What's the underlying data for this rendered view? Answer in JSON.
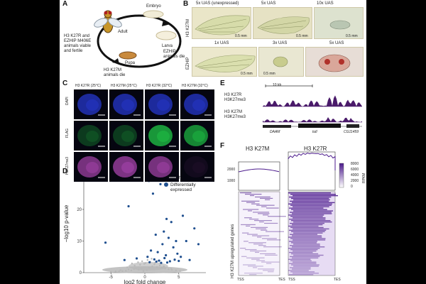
{
  "panels": {
    "A": {
      "label": "A",
      "stages": [
        "Embryo",
        "Adult",
        "Larva",
        "Pupa"
      ],
      "left_note": [
        "H3 K27R and",
        "EZHIP M406E",
        "animals viable",
        "and fertile"
      ],
      "right_note": [
        "EZHIP",
        "animals die"
      ],
      "bottom_note": [
        "H3 K27M",
        "animals die"
      ]
    },
    "B": {
      "label": "B",
      "row1_title": "H3 K27M",
      "row2_title": "EZHIP",
      "row1_cols": [
        "5x UAS (unexpressed)",
        "5x UAS",
        "10x UAS"
      ],
      "row2_cols": [
        "1x UAS",
        "3x UAS",
        "5x UAS"
      ],
      "scale_labels": [
        "0.5 mm",
        "0.5 mm",
        "0.5 mm",
        "0.5 mm",
        "0.5 mm"
      ]
    },
    "C": {
      "label": "C",
      "columns": [
        "H3 K27R (25°C)",
        "H3 K27M (25°C)",
        "H3 K27R (32°C)",
        "H3 K27M (32°C)"
      ],
      "rows": [
        "DAPI",
        "FLAG",
        "H3K27me3"
      ]
    },
    "D": {
      "label": "D",
      "legend": [
        "Unchanged",
        "Differentially expressed"
      ],
      "y_axis_label": "−log10 p-value",
      "x_axis_label": "log2 fold change"
    },
    "E": {
      "label": "E",
      "scale": "10 kb",
      "tracks": [
        {
          "line1": "H3 K27R",
          "line2": "H3K27me3"
        },
        {
          "line1": "H3 K27M",
          "line2": "H3K27me3"
        }
      ],
      "genes": [
        "DAAM",
        "tutl",
        "CG11459"
      ]
    },
    "F": {
      "label": "F",
      "titles": [
        "H3 K27M",
        "H3 K27R"
      ],
      "y_label": "H3 K27M upregulated genes",
      "x_ticks": [
        "TSS",
        "TES",
        "TSS",
        "TES"
      ],
      "profile_ticks": [
        "2000",
        "1000"
      ],
      "colorbar_label": "RPKM",
      "colorbar_ticks": [
        "8000",
        "6000",
        "4000",
        "2000",
        "0"
      ]
    }
  },
  "chart_data": {
    "type": "scatter",
    "title": "",
    "xlabel": "log2 fold change",
    "ylabel": "−log10 p-value",
    "xlim": [
      -9,
      9
    ],
    "ylim": [
      0,
      31
    ],
    "xticks": [
      -5,
      0,
      5
    ],
    "yticks": [
      0,
      10,
      20,
      30
    ],
    "legend_position": "top-right",
    "series": [
      {
        "name": "Unchanged",
        "color": "#b8b8b8",
        "x": [
          -0.2,
          0.3,
          -0.5,
          0.6,
          -0.9,
          1.1,
          -1.3,
          1.4,
          -1.6,
          1.8,
          -2.0,
          2.2,
          -2.4,
          2.5,
          -2.8,
          3.0,
          -3.3,
          3.5,
          -3.8,
          4.0,
          -4.3,
          4.6,
          -5.0,
          5.2,
          0.1,
          -0.1,
          0.8,
          -0.7,
          1.5,
          -1.5,
          2.8,
          -2.6,
          3.9,
          -3.6,
          0.4,
          -0.4,
          1.0,
          -1.0,
          2.0,
          -1.9
        ],
        "y": [
          0.5,
          0.8,
          1.2,
          1.5,
          0.9,
          2.0,
          1.4,
          2.6,
          1.1,
          1.8,
          0.7,
          2.3,
          1.0,
          1.6,
          0.6,
          1.3,
          0.5,
          1.1,
          0.4,
          0.9,
          0.4,
          0.7,
          0.3,
          0.5,
          3.0,
          2.8,
          3.4,
          2.5,
          3.1,
          2.2,
          2.0,
          1.7,
          1.2,
          0.8,
          4.0,
          3.6,
          4.4,
          3.3,
          3.8,
          2.9
        ]
      },
      {
        "name": "Differentially expressed",
        "color": "#1f4f8f",
        "x": [
          -5.8,
          -2.4,
          0.6,
          1.2,
          2.3,
          3.2,
          3.9,
          4.6,
          5.6,
          6.1,
          7.3,
          7.9,
          1.6,
          2.8,
          3.5,
          4.2,
          0.9,
          1.9,
          2.6,
          3.1,
          4.8,
          5.3,
          6.6,
          -1.2,
          -3.0,
          0.4,
          1.4,
          2.1,
          2.9,
          3.7,
          4.4,
          5.0,
          0.7,
          1.7,
          2.4,
          3.3
        ],
        "y": [
          9.5,
          21,
          29,
          25,
          28,
          17,
          16,
          10,
          18,
          10,
          14,
          9,
          12,
          13,
          11,
          8,
          7,
          6.5,
          9,
          5.5,
          6,
          5,
          4,
          4.5,
          4,
          5,
          4.2,
          3.8,
          4.6,
          3.6,
          4.1,
          3.7,
          3.3,
          3.5,
          3.1,
          3.2
        ]
      }
    ]
  },
  "colors": {
    "dapi": "#2a3de0",
    "flag": "#21d24a",
    "me3": "#c24fc6",
    "track": "#4a1a6a",
    "heat": "#4b1a8c",
    "scatter_de": "#1f4f8f",
    "scatter_un": "#b8b8b8"
  }
}
